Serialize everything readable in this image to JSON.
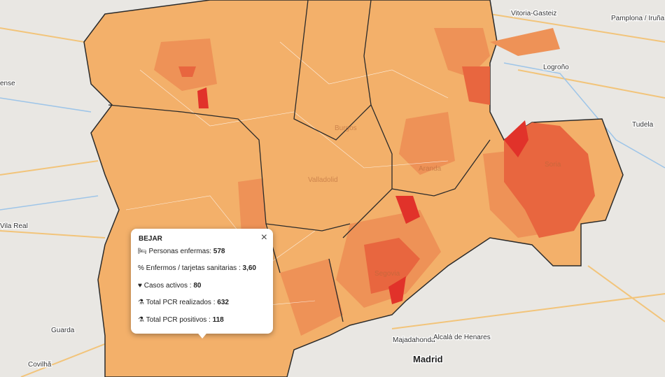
{
  "map": {
    "places": [
      "Vitoria-Gasteiz",
      "Pamplona / Iruña",
      "Logroño",
      "Tudela",
      "Soria",
      "Aranda",
      "Valladolid",
      "Segovia",
      "Burgos",
      "Vila Real",
      "Guarda",
      "Covilhã",
      "Majadahonda",
      "Alcalá de Henares",
      "Madrid",
      "ense"
    ]
  },
  "popup": {
    "title": "BEJAR",
    "rows": [
      {
        "label": "Personas enfermas:",
        "value": 578
      },
      {
        "label": "Enfermos / tarjetas sanitarias :",
        "value": "3,60"
      },
      {
        "label": "Casos activos :",
        "value": 80
      },
      {
        "label": "Total PCR realizados :",
        "value": 632
      },
      {
        "label": "Total PCR positivos :",
        "value": 118
      }
    ],
    "close": "×"
  }
}
